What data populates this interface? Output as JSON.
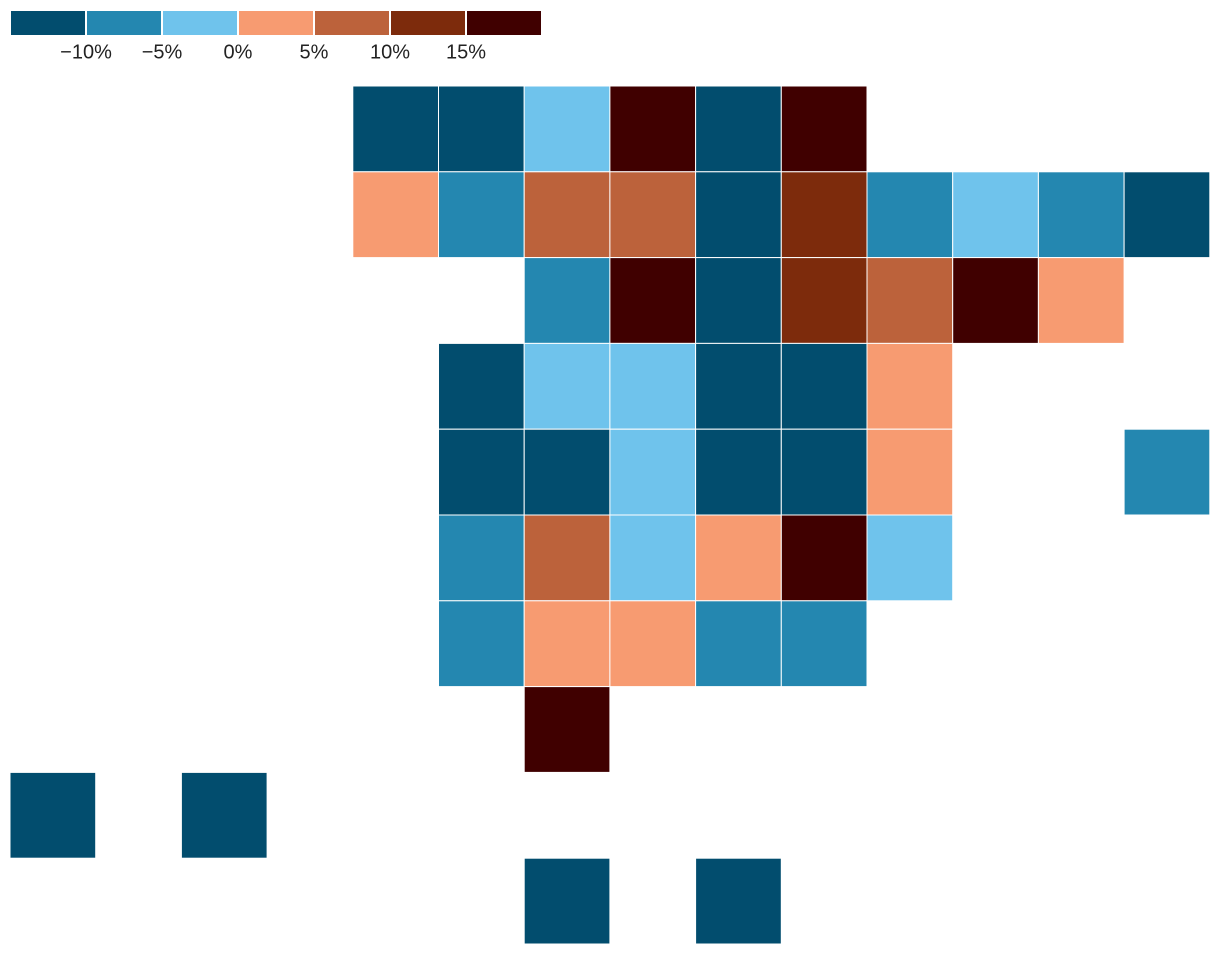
{
  "legend": {
    "colors": [
      "#024d6e",
      "#2487b0",
      "#6fc3ec",
      "#f79b71",
      "#bc623b",
      "#7d2b0c",
      "#400000"
    ],
    "ticks": [
      {
        "value": -10,
        "label": "−10%"
      },
      {
        "value": -5,
        "label": "−5%"
      },
      {
        "value": 0,
        "label": "0%"
      },
      {
        "value": 5,
        "label": "5%"
      },
      {
        "value": 10,
        "label": "10%"
      },
      {
        "value": 15,
        "label": "15%"
      }
    ]
  },
  "grid": [
    [
      null,
      null,
      null,
      null,
      0,
      0,
      2,
      6,
      0,
      6,
      null,
      null,
      null,
      null
    ],
    [
      null,
      null,
      null,
      null,
      3,
      1,
      4,
      4,
      0,
      5,
      1,
      2,
      1,
      0
    ],
    [
      null,
      null,
      null,
      null,
      null,
      null,
      1,
      6,
      0,
      5,
      4,
      6,
      3,
      null
    ],
    [
      null,
      null,
      null,
      null,
      null,
      0,
      2,
      2,
      0,
      0,
      3,
      null,
      null,
      null
    ],
    [
      null,
      null,
      null,
      null,
      null,
      0,
      0,
      2,
      0,
      0,
      3,
      null,
      null,
      1
    ],
    [
      null,
      null,
      null,
      null,
      null,
      1,
      4,
      2,
      3,
      6,
      2,
      null,
      null,
      null
    ],
    [
      null,
      null,
      null,
      null,
      null,
      1,
      3,
      3,
      1,
      1,
      null,
      null,
      null,
      null
    ],
    [
      null,
      null,
      null,
      null,
      null,
      null,
      6,
      null,
      null,
      null,
      null,
      null,
      null,
      null
    ],
    [
      0,
      null,
      0,
      null,
      null,
      null,
      null,
      null,
      null,
      null,
      null,
      null,
      null,
      null
    ],
    [
      null,
      null,
      null,
      null,
      null,
      null,
      0,
      null,
      0,
      null,
      null,
      null,
      null,
      null
    ]
  ]
}
